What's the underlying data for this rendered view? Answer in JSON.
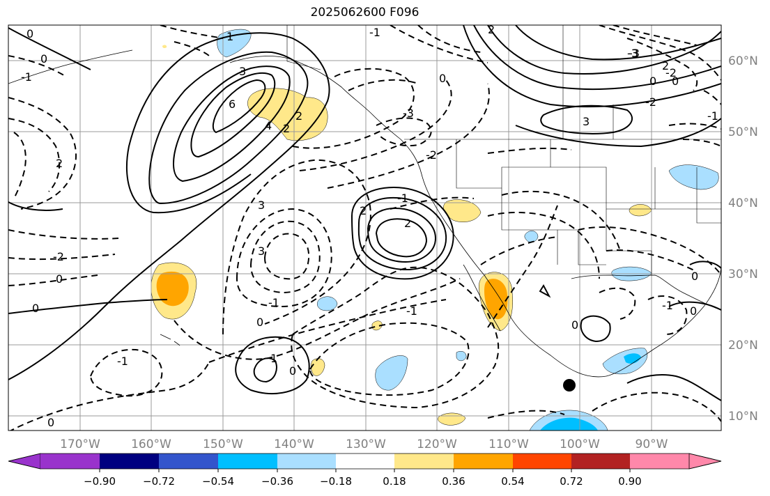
{
  "title": "2025062600 F096",
  "map": {
    "lon_ticks": [
      "170°W",
      "160°W",
      "150°W",
      "140°W",
      "130°W",
      "120°W",
      "110°W",
      "100°W",
      "90°W"
    ],
    "lat_ticks": [
      "60°N",
      "50°N",
      "40°N",
      "30°N",
      "20°N",
      "10°N"
    ],
    "contour_labels": [
      "0",
      "-1",
      "1",
      "0",
      "-1",
      "3",
      "6",
      "4",
      "2",
      "3",
      "2",
      "2",
      "-1",
      "2",
      "-2",
      "3",
      "-3",
      "2",
      "-3",
      "0",
      "-2",
      "-2",
      "0",
      "2",
      "0",
      "-1",
      "0",
      "-1",
      "1",
      "0",
      "0",
      "-1",
      "0",
      "-1",
      "0",
      "3",
      "-2",
      "-3",
      "2",
      "0",
      "0",
      "-1",
      "0"
    ]
  },
  "colorbar": {
    "colors": [
      "#9933cc",
      "#000080",
      "#3355cc",
      "#00bfff",
      "#aadfff",
      "#ffffff",
      "#ffe88a",
      "#ffa500",
      "#ff4500",
      "#b22222",
      "#ff88aa"
    ],
    "tick_labels": [
      "−0.90",
      "−0.72",
      "−0.54",
      "−0.36",
      "−0.18",
      "0.18",
      "0.36",
      "0.54",
      "0.72",
      "0.90"
    ]
  }
}
